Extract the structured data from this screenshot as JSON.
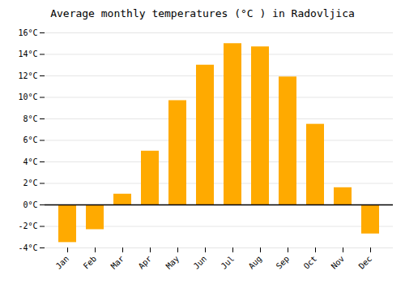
{
  "chart_data": {
    "type": "bar",
    "title": "Average monthly temperatures (°C ) in Radovljica",
    "categories": [
      "Jan",
      "Feb",
      "Mar",
      "Apr",
      "May",
      "Jun",
      "Jul",
      "Aug",
      "Sep",
      "Oct",
      "Nov",
      "Dec"
    ],
    "values": [
      -3.5,
      -2.3,
      1.0,
      5.0,
      9.7,
      13.0,
      15.0,
      14.7,
      11.9,
      7.5,
      1.6,
      -2.7
    ],
    "color": "#FFAA00",
    "ylim": [
      -4,
      16
    ],
    "yticks": [
      {
        "value": -4,
        "label": "-4°C"
      },
      {
        "value": -2,
        "label": "-2°C"
      },
      {
        "value": 0,
        "label": "0°C"
      },
      {
        "value": 2,
        "label": "2°C"
      },
      {
        "value": 4,
        "label": "4°C"
      },
      {
        "value": 6,
        "label": "6°C"
      },
      {
        "value": 8,
        "label": "8°C"
      },
      {
        "value": 10,
        "label": "10°C"
      },
      {
        "value": 12,
        "label": "12°C"
      },
      {
        "value": 14,
        "label": "14°C"
      },
      {
        "value": 16,
        "label": "16°C"
      }
    ],
    "grid": true
  }
}
